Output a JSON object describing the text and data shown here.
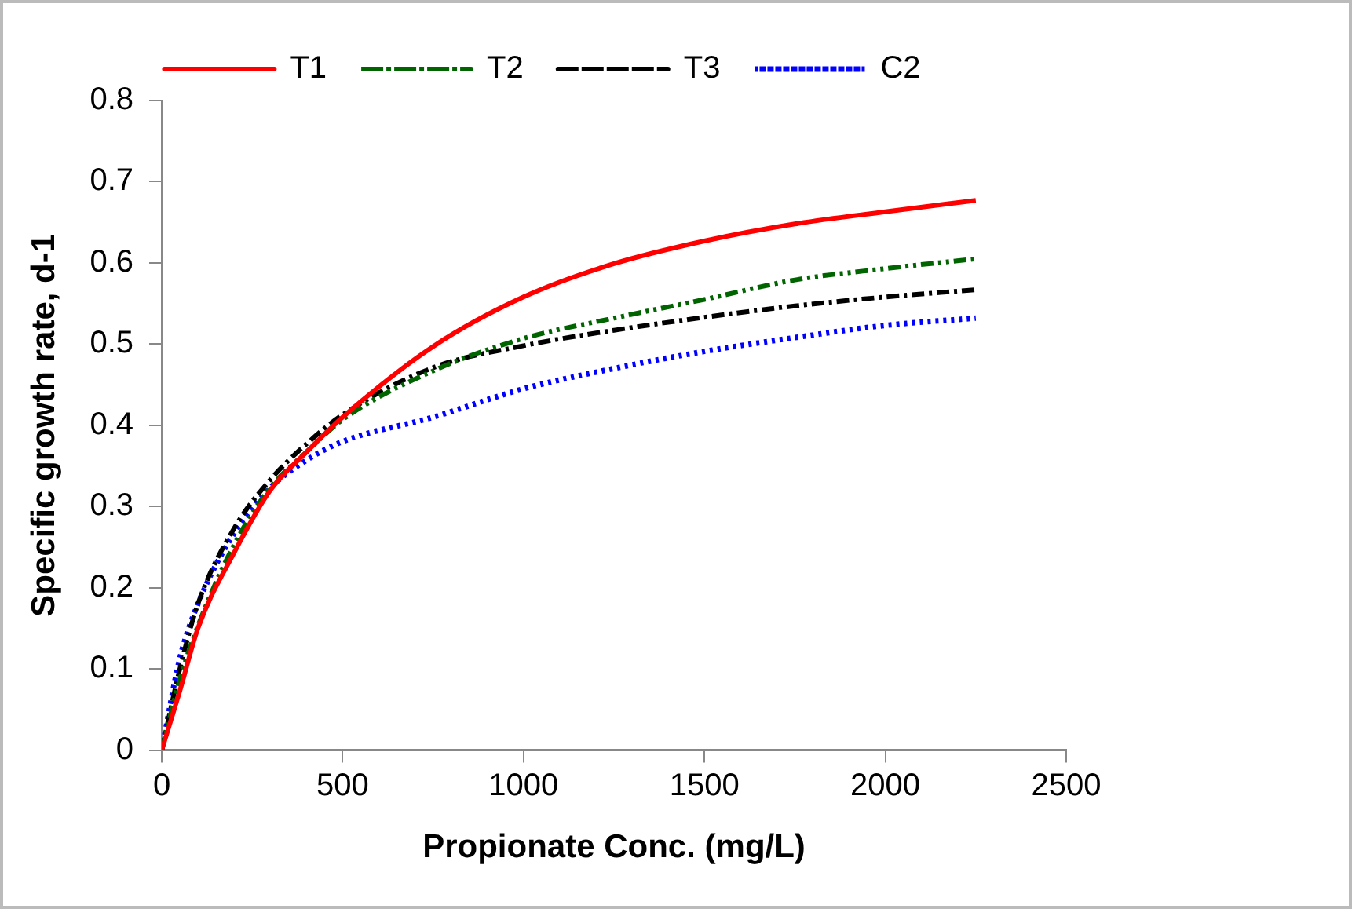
{
  "chart_data": {
    "type": "line",
    "xlabel": "Propionate Conc. (mg/L)",
    "ylabel": "Specific growth rate, d-1",
    "x": [
      0,
      50,
      100,
      200,
      300,
      400,
      500,
      750,
      1000,
      1250,
      1500,
      1750,
      2000,
      2250
    ],
    "series": [
      {
        "name": "T1",
        "color": "#ff0000",
        "line_style": "solid",
        "values": [
          0,
          0.073,
          0.15,
          0.243,
          0.32,
          0.367,
          0.41,
          0.497,
          0.558,
          0.599,
          0.627,
          0.648,
          0.663,
          0.677
        ]
      },
      {
        "name": "T2",
        "color": "#006400",
        "line_style": "dashdotdot",
        "values": [
          0,
          0.087,
          0.153,
          0.253,
          0.323,
          0.367,
          0.407,
          0.467,
          0.507,
          0.532,
          0.555,
          0.579,
          0.593,
          0.605
        ]
      },
      {
        "name": "T3",
        "color": "#000000",
        "line_style": "dashdot",
        "values": [
          0,
          0.1,
          0.18,
          0.273,
          0.333,
          0.377,
          0.413,
          0.471,
          0.498,
          0.517,
          0.533,
          0.547,
          0.558,
          0.567
        ]
      },
      {
        "name": "C2",
        "color": "#0000ff",
        "line_style": "dotted",
        "values": [
          0,
          0.113,
          0.18,
          0.267,
          0.323,
          0.357,
          0.38,
          0.41,
          0.445,
          0.47,
          0.491,
          0.508,
          0.523,
          0.532
        ]
      }
    ],
    "xlim": [
      0,
      2500
    ],
    "xticks": [
      0,
      500,
      1000,
      1500,
      2000,
      2500
    ],
    "ylim": [
      0,
      0.8
    ],
    "yticks": [
      0,
      0.1,
      0.2,
      0.3,
      0.4,
      0.5,
      0.6,
      0.7,
      0.8
    ],
    "grid": false,
    "legend": "top",
    "marker": "none"
  }
}
